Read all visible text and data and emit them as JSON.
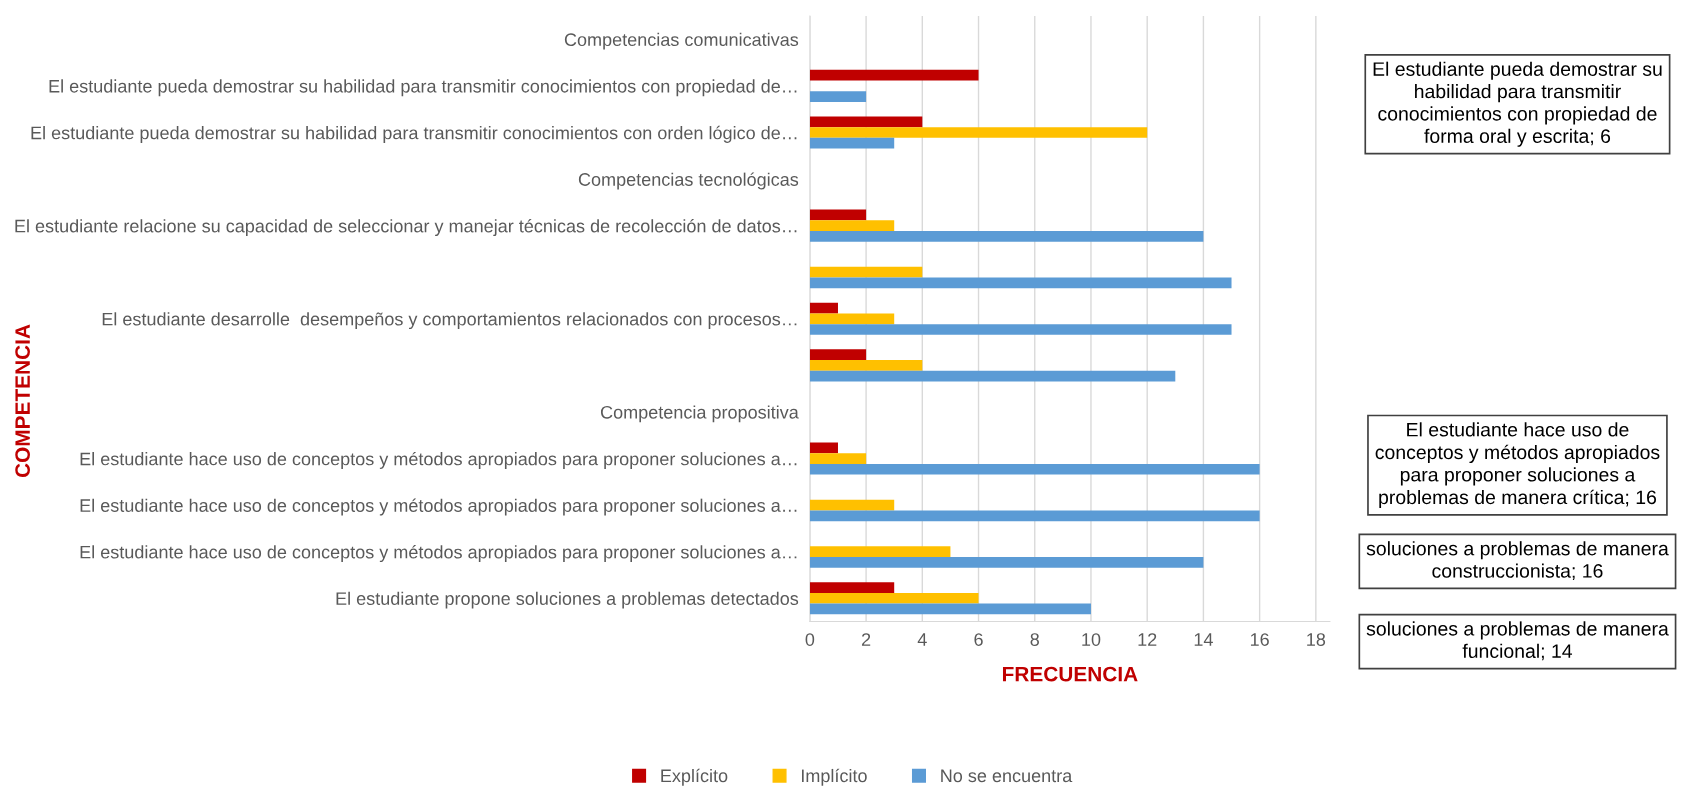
{
  "chart_data": {
    "type": "bar",
    "orientation": "horizontal",
    "xlabel": "FRECUENCIA",
    "ylabel": "COMPETENCIA",
    "categories": [
      "Competencias comunicativas",
      "El estudiante pueda demostrar su habilidad para transmitir conocimientos con propiedad de…",
      "El estudiante pueda demostrar su habilidad para transmitir conocimientos con orden lógico de…",
      "Competencias tecnológicas",
      "El estudiante relacione su capacidad de seleccionar y manejar técnicas de recolección de datos…",
      null,
      "El estudiante desarrolle  desempeños y comportamientos relacionados con procesos…",
      null,
      "Competencia propositiva",
      "El estudiante hace uso de conceptos y métodos apropiados para proponer soluciones a…",
      "El estudiante hace uso de conceptos y métodos apropiados para proponer soluciones a…",
      "El estudiante hace uso de conceptos y métodos apropiados para proponer soluciones a…",
      "El estudiante propone soluciones a problemas detectados"
    ],
    "series": [
      {
        "name": "Explícito",
        "color": "#c00000",
        "values": [
          null,
          6,
          4,
          null,
          2,
          0,
          1,
          2,
          null,
          1,
          0,
          0,
          3
        ]
      },
      {
        "name": "Implícito",
        "color": "#ffc000",
        "values": [
          null,
          null,
          12,
          null,
          3,
          4,
          3,
          4,
          null,
          2,
          3,
          5,
          6
        ]
      },
      {
        "name": "No se encuentra",
        "color": "#5b9bd5",
        "values": [
          null,
          2,
          3,
          null,
          14,
          15,
          15,
          13,
          null,
          16,
          16,
          14,
          10
        ]
      }
    ],
    "xlim": [
      0,
      18.5
    ],
    "xticks": [
      0,
      2,
      4,
      6,
      8,
      10,
      12,
      14,
      16,
      18
    ],
    "grid": "x",
    "legend": "bottom",
    "annotations": [
      "El estudiante pueda demostrar su habilidad para transmitir conocimientos con propiedad de forma oral y escrita; 6",
      "El estudiante hace uso de conceptos y métodos apropiados para proponer soluciones a problemas de manera crítica; 16",
      "soluciones a problemas de manera construccionista; 16",
      "soluciones a problemas de manera funcional; 14"
    ]
  }
}
